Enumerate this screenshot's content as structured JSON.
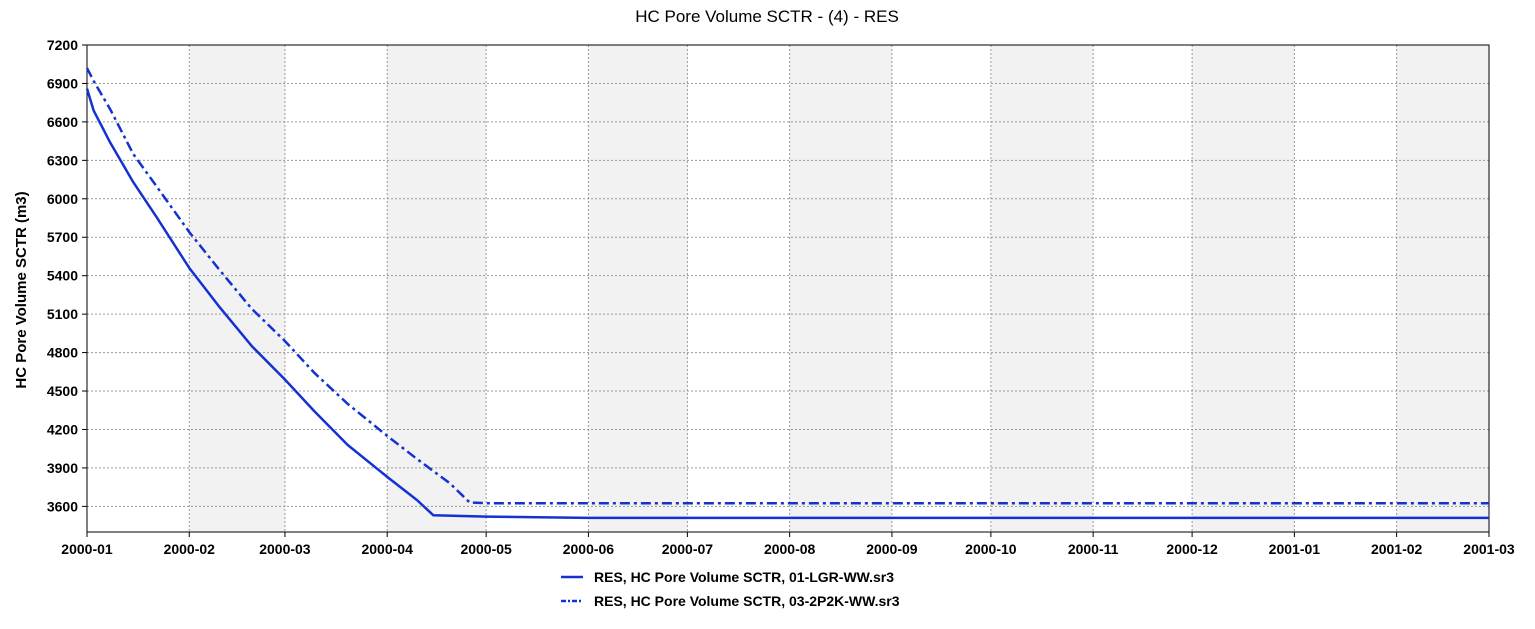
{
  "chart_data": {
    "type": "line",
    "title": "HC Pore Volume SCTR - (4) - RES",
    "xlabel": "",
    "ylabel": "HC Pore Volume SCTR (m3)",
    "ylim": [
      3400,
      7200
    ],
    "yticks": [
      3600,
      3900,
      4200,
      4500,
      4800,
      5100,
      5400,
      5700,
      6000,
      6300,
      6600,
      6900,
      7200
    ],
    "xlim": [
      "2000-01-01",
      "2001-03-01"
    ],
    "xticks": [
      "2000-01",
      "2000-02",
      "2000-03",
      "2000-04",
      "2000-05",
      "2000-06",
      "2000-07",
      "2000-08",
      "2000-09",
      "2000-10",
      "2000-11",
      "2000-12",
      "2001-01",
      "2001-02",
      "2001-03"
    ],
    "grid": true,
    "legend_position": "bottom",
    "series": [
      {
        "name": "RES, HC Pore Volume SCTR, 01-LGR-WW.sr3",
        "style": "solid",
        "color": "#1432d2",
        "points": [
          [
            "2000-01-01",
            6860
          ],
          [
            "2000-01-03",
            6690
          ],
          [
            "2000-01-08",
            6440
          ],
          [
            "2000-01-15",
            6130
          ],
          [
            "2000-01-22",
            5860
          ],
          [
            "2000-02-01",
            5460
          ],
          [
            "2000-02-10",
            5160
          ],
          [
            "2000-02-20",
            4850
          ],
          [
            "2000-03-01",
            4590
          ],
          [
            "2000-03-10",
            4340
          ],
          [
            "2000-03-20",
            4080
          ],
          [
            "2000-04-01",
            3830
          ],
          [
            "2000-04-10",
            3650
          ],
          [
            "2000-04-15",
            3530
          ],
          [
            "2000-05-01",
            3520
          ],
          [
            "2000-06-01",
            3510
          ],
          [
            "2001-03-01",
            3510
          ]
        ]
      },
      {
        "name": "RES, HC Pore Volume SCTR, 03-2P2K-WW.sr3",
        "style": "dash-dot",
        "color": "#1432d2",
        "points": [
          [
            "2000-01-01",
            7020
          ],
          [
            "2000-01-03",
            6920
          ],
          [
            "2000-01-08",
            6700
          ],
          [
            "2000-01-15",
            6350
          ],
          [
            "2000-01-22",
            6100
          ],
          [
            "2000-02-01",
            5740
          ],
          [
            "2000-02-10",
            5450
          ],
          [
            "2000-02-20",
            5140
          ],
          [
            "2000-03-01",
            4890
          ],
          [
            "2000-03-10",
            4640
          ],
          [
            "2000-03-20",
            4400
          ],
          [
            "2000-04-01",
            4150
          ],
          [
            "2000-04-10",
            3970
          ],
          [
            "2000-04-20",
            3780
          ],
          [
            "2000-04-26",
            3630
          ],
          [
            "2000-05-01",
            3625
          ],
          [
            "2001-03-01",
            3625
          ]
        ]
      }
    ]
  }
}
